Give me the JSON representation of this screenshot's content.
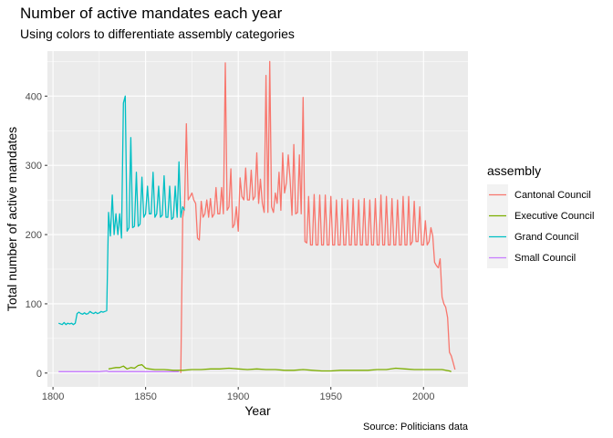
{
  "chart_data": {
    "type": "line",
    "title": "Number of active mandates each year",
    "subtitle": "Using colors to differentiate assembly categories",
    "xlabel": "Year",
    "ylabel": "Total number of active mandates",
    "caption": "Source: Politicians data",
    "xlim": [
      1797,
      2024
    ],
    "ylim": [
      -20,
      465
    ],
    "xticks": [
      1800,
      1850,
      1900,
      1950,
      2000
    ],
    "yticks": [
      0,
      100,
      200,
      300,
      400
    ],
    "grid": true,
    "legend": {
      "title": "assembly",
      "position": "right"
    },
    "series": [
      {
        "name": "Cantonal Council",
        "color": "#F8766D",
        "points": [
          [
            1869,
            0
          ],
          [
            1870,
            225
          ],
          [
            1871,
            240
          ],
          [
            1872,
            360
          ],
          [
            1873,
            250
          ],
          [
            1874,
            255
          ],
          [
            1875,
            260
          ],
          [
            1876,
            250
          ],
          [
            1877,
            245
          ],
          [
            1878,
            195
          ],
          [
            1879,
            192
          ],
          [
            1880,
            248
          ],
          [
            1881,
            225
          ],
          [
            1882,
            230
          ],
          [
            1883,
            250
          ],
          [
            1884,
            225
          ],
          [
            1885,
            252
          ],
          [
            1886,
            225
          ],
          [
            1887,
            230
          ],
          [
            1888,
            268
          ],
          [
            1889,
            230
          ],
          [
            1890,
            230
          ],
          [
            1891,
            268
          ],
          [
            1892,
            230
          ],
          [
            1893,
            448
          ],
          [
            1894,
            235
          ],
          [
            1895,
            240
          ],
          [
            1896,
            295
          ],
          [
            1897,
            210
          ],
          [
            1898,
            215
          ],
          [
            1899,
            240
          ],
          [
            1900,
            205
          ],
          [
            1901,
            282
          ],
          [
            1902,
            255
          ],
          [
            1903,
            250
          ],
          [
            1904,
            296
          ],
          [
            1905,
            250
          ],
          [
            1906,
            250
          ],
          [
            1907,
            293
          ],
          [
            1908,
            250
          ],
          [
            1909,
            255
          ],
          [
            1910,
            318
          ],
          [
            1911,
            245
          ],
          [
            1912,
            280
          ],
          [
            1913,
            245
          ],
          [
            1914,
            232
          ],
          [
            1915,
            430
          ],
          [
            1916,
            232
          ],
          [
            1917,
            450
          ],
          [
            1918,
            240
          ],
          [
            1919,
            232
          ],
          [
            1920,
            260
          ],
          [
            1921,
            245
          ],
          [
            1922,
            290
          ],
          [
            1923,
            235
          ],
          [
            1924,
            318
          ],
          [
            1925,
            260
          ],
          [
            1926,
            275
          ],
          [
            1927,
            315
          ],
          [
            1928,
            280
          ],
          [
            1929,
            228
          ],
          [
            1930,
            330
          ],
          [
            1931,
            230
          ],
          [
            1932,
            232
          ],
          [
            1933,
            315
          ],
          [
            1934,
            230
          ],
          [
            1935,
            398
          ],
          [
            1936,
            190
          ],
          [
            1937,
            188
          ],
          [
            1938,
            255
          ],
          [
            1939,
            185
          ],
          [
            1940,
            185
          ],
          [
            1941,
            258
          ],
          [
            1942,
            185
          ],
          [
            1943,
            185
          ],
          [
            1944,
            257
          ],
          [
            1945,
            185
          ],
          [
            1946,
            185
          ],
          [
            1947,
            257
          ],
          [
            1948,
            185
          ],
          [
            1949,
            185
          ],
          [
            1950,
            255
          ],
          [
            1951,
            185
          ],
          [
            1952,
            185
          ],
          [
            1953,
            250
          ],
          [
            1954,
            185
          ],
          [
            1955,
            185
          ],
          [
            1956,
            252
          ],
          [
            1957,
            185
          ],
          [
            1958,
            185
          ],
          [
            1959,
            250
          ],
          [
            1960,
            185
          ],
          [
            1961,
            185
          ],
          [
            1962,
            252
          ],
          [
            1963,
            185
          ],
          [
            1964,
            185
          ],
          [
            1965,
            250
          ],
          [
            1966,
            185
          ],
          [
            1967,
            185
          ],
          [
            1968,
            252
          ],
          [
            1969,
            185
          ],
          [
            1970,
            185
          ],
          [
            1971,
            250
          ],
          [
            1972,
            185
          ],
          [
            1973,
            185
          ],
          [
            1974,
            252
          ],
          [
            1975,
            185
          ],
          [
            1976,
            185
          ],
          [
            1977,
            257
          ],
          [
            1978,
            185
          ],
          [
            1979,
            185
          ],
          [
            1980,
            255
          ],
          [
            1981,
            185
          ],
          [
            1982,
            185
          ],
          [
            1983,
            252
          ],
          [
            1984,
            185
          ],
          [
            1985,
            185
          ],
          [
            1986,
            250
          ],
          [
            1987,
            185
          ],
          [
            1988,
            185
          ],
          [
            1989,
            255
          ],
          [
            1990,
            185
          ],
          [
            1991,
            185
          ],
          [
            1992,
            255
          ],
          [
            1993,
            185
          ],
          [
            1994,
            190
          ],
          [
            1995,
            248
          ],
          [
            1996,
            190
          ],
          [
            1997,
            190
          ],
          [
            1998,
            240
          ],
          [
            1999,
            185
          ],
          [
            2000,
            185
          ],
          [
            2001,
            220
          ],
          [
            2002,
            185
          ],
          [
            2003,
            190
          ],
          [
            2004,
            210
          ],
          [
            2005,
            198
          ],
          [
            2006,
            160
          ],
          [
            2007,
            155
          ],
          [
            2008,
            152
          ],
          [
            2009,
            165
          ],
          [
            2010,
            110
          ],
          [
            2011,
            100
          ],
          [
            2012,
            95
          ],
          [
            2013,
            80
          ],
          [
            2014,
            30
          ],
          [
            2015,
            25
          ],
          [
            2016,
            15
          ],
          [
            2017,
            5
          ]
        ]
      },
      {
        "name": "Executive Council",
        "color": "#7CAE00",
        "points": [
          [
            1830,
            6
          ],
          [
            1832,
            7
          ],
          [
            1834,
            8
          ],
          [
            1836,
            8
          ],
          [
            1838,
            10
          ],
          [
            1840,
            6
          ],
          [
            1842,
            8
          ],
          [
            1844,
            7
          ],
          [
            1846,
            11
          ],
          [
            1848,
            12
          ],
          [
            1850,
            7
          ],
          [
            1852,
            6
          ],
          [
            1855,
            5
          ],
          [
            1860,
            5
          ],
          [
            1865,
            4
          ],
          [
            1870,
            4
          ],
          [
            1875,
            5
          ],
          [
            1880,
            5
          ],
          [
            1885,
            6
          ],
          [
            1890,
            6
          ],
          [
            1895,
            7
          ],
          [
            1900,
            6
          ],
          [
            1905,
            5
          ],
          [
            1910,
            6
          ],
          [
            1915,
            5
          ],
          [
            1920,
            5
          ],
          [
            1925,
            4
          ],
          [
            1930,
            4
          ],
          [
            1935,
            5
          ],
          [
            1940,
            4
          ],
          [
            1945,
            3
          ],
          [
            1950,
            3
          ],
          [
            1955,
            4
          ],
          [
            1960,
            4
          ],
          [
            1965,
            4
          ],
          [
            1970,
            4
          ],
          [
            1975,
            5
          ],
          [
            1980,
            5
          ],
          [
            1985,
            7
          ],
          [
            1990,
            6
          ],
          [
            1995,
            5
          ],
          [
            2000,
            5
          ],
          [
            2005,
            5
          ],
          [
            2010,
            5
          ],
          [
            2012,
            4
          ],
          [
            2014,
            3
          ],
          [
            2015,
            2
          ]
        ]
      },
      {
        "name": "Grand Council",
        "color": "#00BFC4",
        "points": [
          [
            1803,
            72
          ],
          [
            1805,
            70
          ],
          [
            1806,
            73
          ],
          [
            1807,
            70
          ],
          [
            1808,
            72
          ],
          [
            1809,
            71
          ],
          [
            1810,
            72
          ],
          [
            1811,
            70
          ],
          [
            1812,
            72
          ],
          [
            1813,
            86
          ],
          [
            1814,
            88
          ],
          [
            1815,
            86
          ],
          [
            1816,
            85
          ],
          [
            1817,
            87
          ],
          [
            1818,
            85
          ],
          [
            1819,
            86
          ],
          [
            1820,
            89
          ],
          [
            1821,
            87
          ],
          [
            1822,
            86
          ],
          [
            1823,
            88
          ],
          [
            1824,
            86
          ],
          [
            1825,
            87
          ],
          [
            1826,
            89
          ],
          [
            1827,
            88
          ],
          [
            1828,
            89
          ],
          [
            1829,
            90
          ],
          [
            1830,
            232
          ],
          [
            1831,
            198
          ],
          [
            1832,
            257
          ],
          [
            1833,
            200
          ],
          [
            1834,
            230
          ],
          [
            1835,
            200
          ],
          [
            1836,
            230
          ],
          [
            1837,
            195
          ],
          [
            1838,
            390
          ],
          [
            1839,
            400
          ],
          [
            1840,
            205
          ],
          [
            1841,
            210
          ],
          [
            1842,
            340
          ],
          [
            1843,
            210
          ],
          [
            1844,
            212
          ],
          [
            1845,
            290
          ],
          [
            1846,
            212
          ],
          [
            1847,
            215
          ],
          [
            1848,
            283
          ],
          [
            1849,
            225
          ],
          [
            1850,
            230
          ],
          [
            1851,
            270
          ],
          [
            1852,
            230
          ],
          [
            1853,
            230
          ],
          [
            1854,
            290
          ],
          [
            1855,
            225
          ],
          [
            1856,
            230
          ],
          [
            1857,
            270
          ],
          [
            1858,
            225
          ],
          [
            1859,
            228
          ],
          [
            1860,
            285
          ],
          [
            1861,
            225
          ],
          [
            1862,
            225
          ],
          [
            1863,
            270
          ],
          [
            1864,
            222
          ],
          [
            1865,
            225
          ],
          [
            1866,
            270
          ],
          [
            1867,
            225
          ],
          [
            1868,
            305
          ],
          [
            1869,
            225
          ],
          [
            1870,
            240
          ],
          [
            1871,
            235
          ]
        ]
      },
      {
        "name": "Small Council",
        "color": "#C77CFF",
        "points": [
          [
            1803,
            2
          ],
          [
            1810,
            2
          ],
          [
            1815,
            2
          ],
          [
            1820,
            2
          ],
          [
            1825,
            2
          ],
          [
            1829,
            3
          ],
          [
            1830,
            2
          ],
          [
            1835,
            2
          ],
          [
            1840,
            2
          ],
          [
            1845,
            2
          ],
          [
            1850,
            2
          ],
          [
            1855,
            2
          ],
          [
            1860,
            2
          ],
          [
            1865,
            2
          ],
          [
            1868,
            2
          ]
        ]
      }
    ]
  }
}
